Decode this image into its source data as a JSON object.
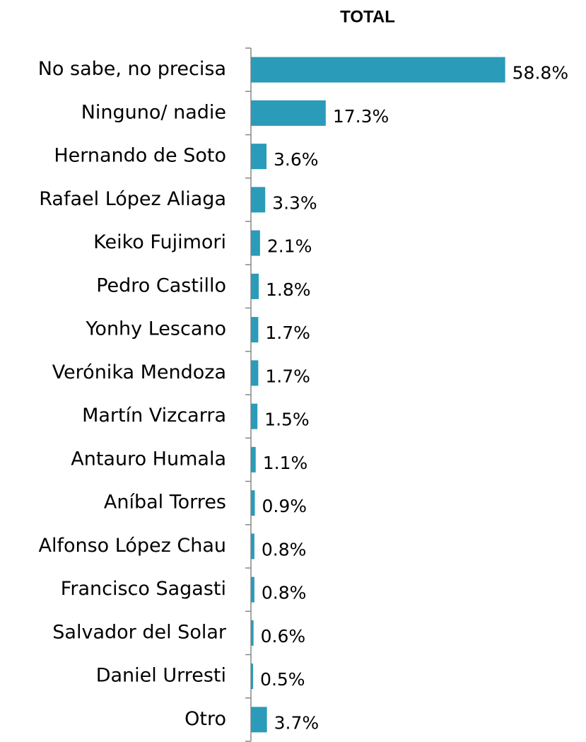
{
  "chart_data": {
    "type": "bar",
    "orientation": "horizontal",
    "title": "TOTAL",
    "categories": [
      "No sabe, no precisa",
      "Ninguno/ nadie ",
      "Hernando de Soto",
      "Rafael López Aliaga",
      "Keiko Fujimori",
      "Pedro Castillo",
      "Yonhy Lescano",
      "Verónika Mendoza",
      "Martín Vizcarra",
      "Antauro Humala",
      "Aníbal Torres",
      "Alfonso López Chau",
      "Francisco Sagasti",
      "Salvador del Solar",
      "Daniel Urresti",
      "Otro"
    ],
    "values": [
      58.8,
      17.3,
      3.6,
      3.3,
      2.1,
      1.8,
      1.7,
      1.7,
      1.5,
      1.1,
      0.9,
      0.8,
      0.8,
      0.6,
      0.5,
      3.7
    ],
    "value_labels": [
      "58.8%",
      "17.3%",
      "3.6%",
      "3.3%",
      "2.1%",
      "1.8%",
      "1.7%",
      "1.7%",
      "1.5%",
      "1.1%",
      "0.9%",
      "0.8%",
      "0.8%",
      "0.6%",
      "0.5%",
      "3.7%"
    ],
    "color": "#2a9bb9",
    "xlim": [
      0,
      60
    ]
  }
}
